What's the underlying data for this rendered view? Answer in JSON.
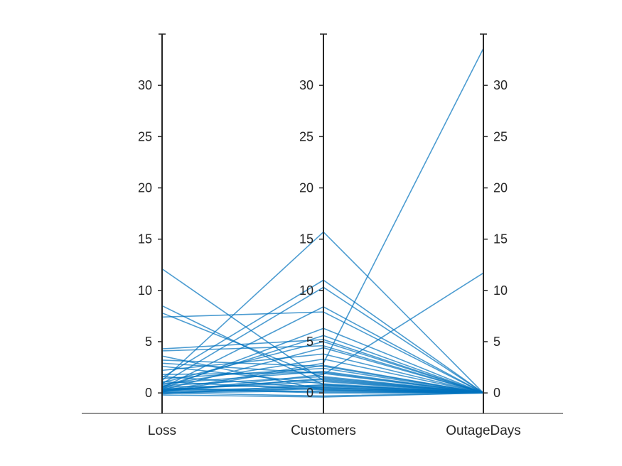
{
  "chart_data": {
    "type": "parallel-coordinates",
    "coordinates": [
      "Loss",
      "Customers",
      "OutageDays"
    ],
    "ylim": [
      -2,
      35
    ],
    "yticks": [
      "0",
      "5",
      "10",
      "15",
      "20",
      "25",
      "30"
    ],
    "line_color": "#0072BD",
    "axis_color": "#262626",
    "series": [
      {
        "values": [
          12.1,
          1.2,
          0
        ]
      },
      {
        "values": [
          8.5,
          0.8,
          0
        ]
      },
      {
        "values": [
          7.8,
          1.5,
          0
        ]
      },
      {
        "values": [
          7.4,
          7.9,
          0
        ]
      },
      {
        "values": [
          4.3,
          5.2,
          0
        ]
      },
      {
        "values": [
          4.1,
          4.6,
          0
        ]
      },
      {
        "values": [
          3.6,
          0.3,
          0
        ]
      },
      {
        "values": [
          3.2,
          2.6,
          0
        ]
      },
      {
        "values": [
          1.2,
          15.7,
          0
        ]
      },
      {
        "values": [
          1.5,
          11.0,
          0
        ]
      },
      {
        "values": [
          0.9,
          10.3,
          0
        ]
      },
      {
        "values": [
          0.5,
          8.4,
          0
        ]
      },
      {
        "values": [
          0.4,
          6.3,
          0
        ]
      },
      {
        "values": [
          0.6,
          5.6,
          0
        ]
      },
      {
        "values": [
          1.0,
          5.0,
          0
        ]
      },
      {
        "values": [
          0.3,
          4.4,
          0
        ]
      },
      {
        "values": [
          2.2,
          3.8,
          0
        ]
      },
      {
        "values": [
          0.2,
          2.9,
          33.6
        ]
      },
      {
        "values": [
          0.1,
          1.8,
          11.7
        ]
      },
      {
        "values": [
          1.8,
          2.0,
          0
        ]
      },
      {
        "values": [
          2.6,
          0.9,
          0
        ]
      },
      {
        "values": [
          0.8,
          3.3,
          0
        ]
      },
      {
        "values": [
          1.4,
          2.4,
          0
        ]
      },
      {
        "values": [
          0.7,
          1.6,
          0
        ]
      },
      {
        "values": [
          0.3,
          1.1,
          0
        ]
      },
      {
        "values": [
          0.2,
          0.6,
          0
        ]
      },
      {
        "values": [
          0.1,
          0.4,
          0
        ]
      },
      {
        "values": [
          0.0,
          0.2,
          0
        ]
      },
      {
        "values": [
          0.5,
          0.1,
          0
        ]
      },
      {
        "values": [
          1.1,
          0.3,
          0
        ]
      },
      {
        "values": [
          0.4,
          0.0,
          0
        ]
      },
      {
        "values": [
          -0.2,
          -0.4,
          0
        ]
      },
      {
        "values": [
          0.0,
          0.5,
          0
        ]
      },
      {
        "values": [
          0.3,
          1.3,
          0
        ]
      },
      {
        "values": [
          0.9,
          2.1,
          0
        ]
      },
      {
        "values": [
          0.6,
          0.7,
          0
        ]
      },
      {
        "values": [
          2.9,
          1.9,
          0
        ]
      },
      {
        "values": [
          1.6,
          0.5,
          0
        ]
      },
      {
        "values": [
          0.1,
          2.7,
          0
        ]
      },
      {
        "values": [
          0.2,
          1.4,
          0
        ]
      },
      {
        "values": [
          -0.1,
          0.8,
          0
        ]
      },
      {
        "values": [
          0.0,
          -0.3,
          0
        ]
      }
    ]
  }
}
